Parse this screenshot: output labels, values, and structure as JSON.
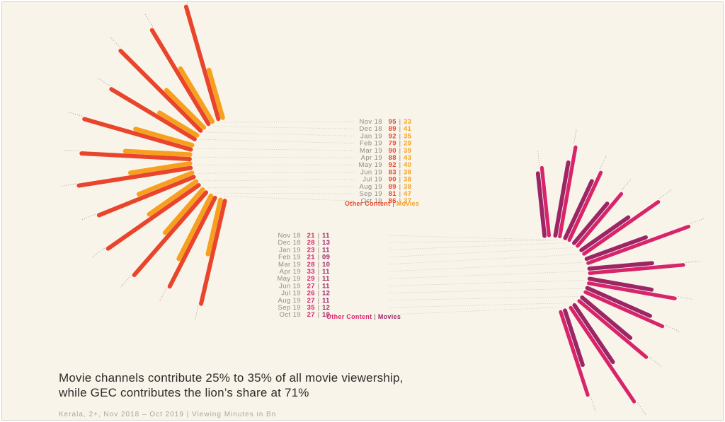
{
  "colors": {
    "other_content_a": "#e8452c",
    "movies_a": "#f7a01e",
    "other_content_b": "#d8246a",
    "movies_b": "#9c2566",
    "background": "#f9f4ea",
    "text_dark": "#2e2b29",
    "text_muted": "#8f8a84"
  },
  "headline": {
    "line1": "Movie channels contribute 25% to 35% of all movie viewership,",
    "line2": "while GEC contributes the lion’s share at 71%"
  },
  "footnote": "Kerala, 2+, Nov 2018 – Oct 2019  |  Viewing Minutes in Bn",
  "chart_data": [
    {
      "type": "radial-bar",
      "categories": [
        "Nov 18",
        "Dec 18",
        "Jan 19",
        "Feb 19",
        "Mar 19",
        "Apr 19",
        "May 19",
        "Jun 19",
        "Jul 19",
        "Aug 19",
        "Sep 19",
        "Oct 19"
      ],
      "series": [
        {
          "name": "Other Content",
          "values": [
            95,
            89,
            92,
            79,
            90,
            88,
            92,
            83,
            90,
            89,
            81,
            86
          ],
          "labels": [
            "95",
            "89",
            "92",
            "79",
            "90",
            "88",
            "92",
            "83",
            "90",
            "89",
            "81",
            "86"
          ]
        },
        {
          "name": "Movies",
          "values": [
            33,
            41,
            35,
            29,
            39,
            43,
            40,
            38,
            38,
            38,
            47,
            37
          ],
          "labels": [
            "33",
            "41",
            "35",
            "29",
            "39",
            "43",
            "40",
            "38",
            "38",
            "38",
            "47",
            "37"
          ]
        }
      ],
      "legend": {
        "other_content": "Other Content",
        "separator": "|",
        "movies": "Movies"
      },
      "value_separator": "|"
    },
    {
      "type": "radial-bar",
      "categories": [
        "Nov 18",
        "Dec 18",
        "Jan 19",
        "Feb 19",
        "Mar 19",
        "Apr 19",
        "May 19",
        "Jun 19",
        "Jul 19",
        "Aug 19",
        "Sep 19",
        "Oct 19"
      ],
      "series": [
        {
          "name": "Other Content",
          "values": [
            21,
            28,
            23,
            21,
            28,
            33,
            29,
            27,
            26,
            27,
            35,
            27
          ],
          "labels": [
            "21",
            "28",
            "23",
            "21",
            "28",
            "33",
            "29",
            "27",
            "26",
            "27",
            "35",
            "27"
          ]
        },
        {
          "name": "Movies",
          "values": [
            11,
            13,
            11,
            9,
            10,
            11,
            11,
            11,
            12,
            11,
            12,
            10
          ],
          "labels": [
            "11",
            "13",
            "11",
            "09",
            "10",
            "11",
            "11",
            "11",
            "12",
            "11",
            "12",
            "10"
          ]
        }
      ],
      "legend": {
        "other_content": "Other Content",
        "separator": "|",
        "movies": "Movies"
      },
      "value_separator": "|"
    }
  ]
}
